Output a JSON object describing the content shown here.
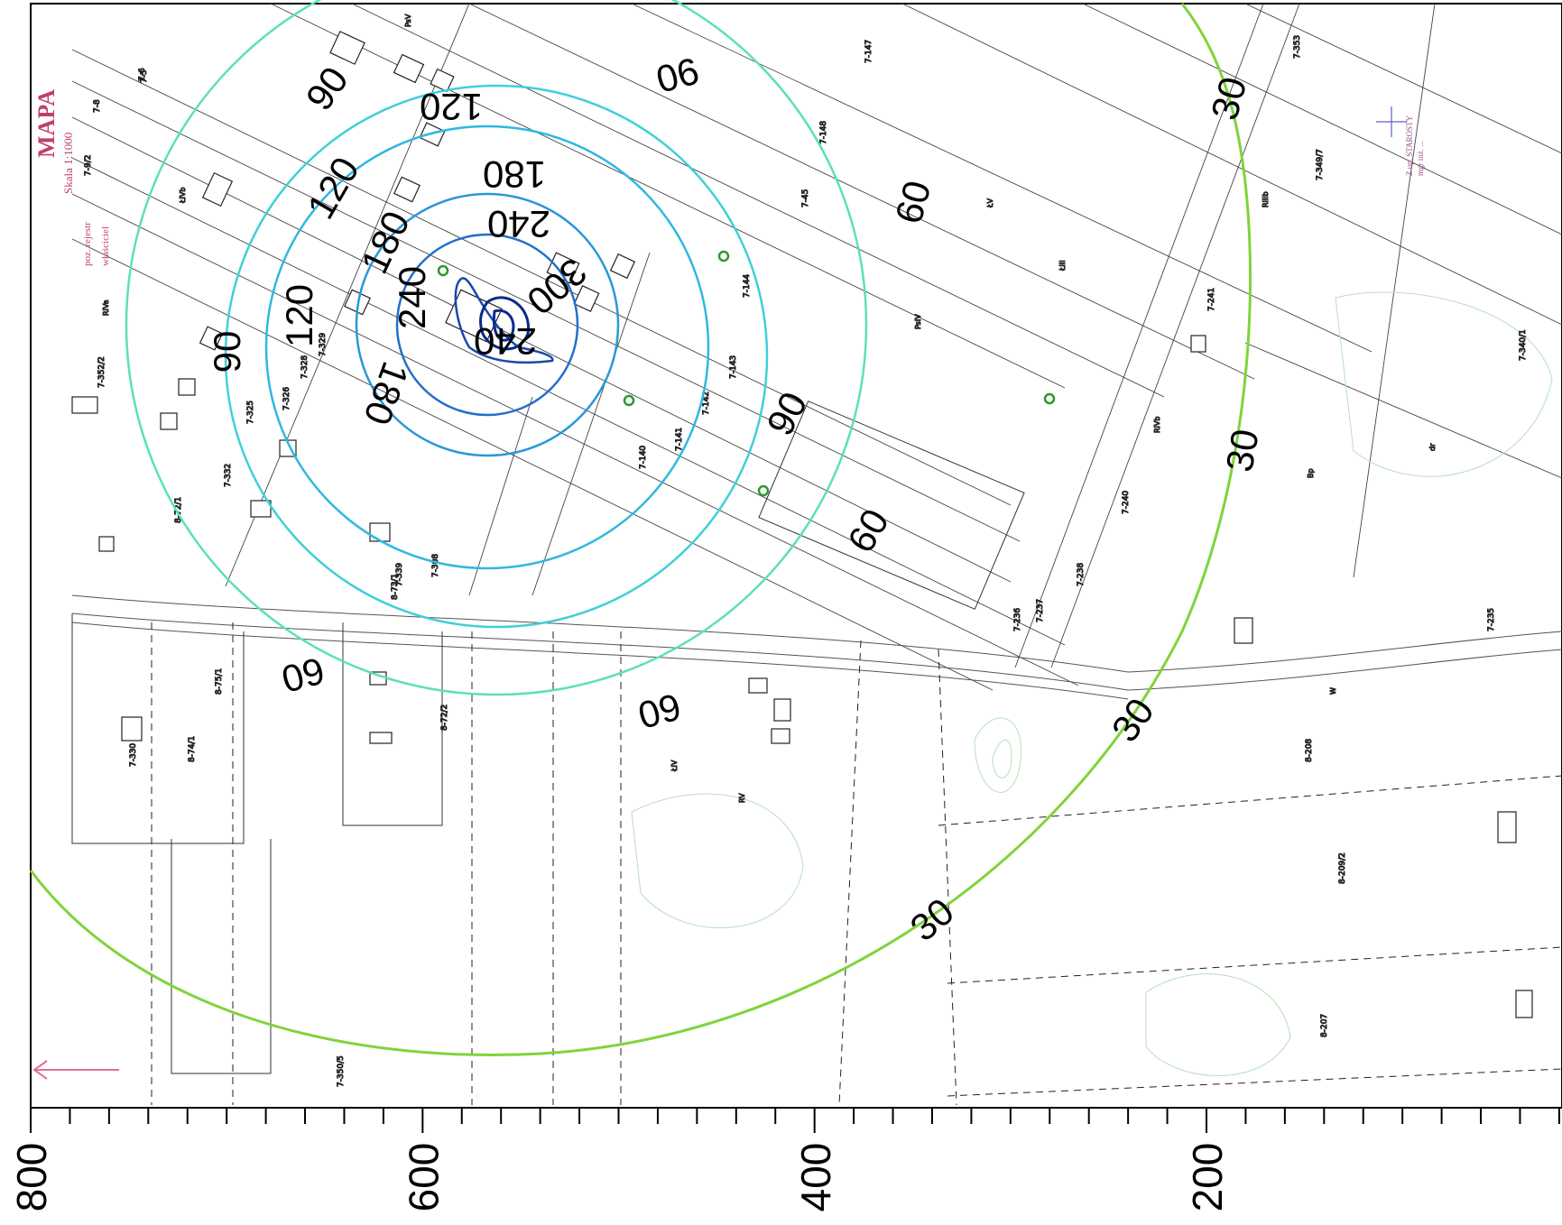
{
  "map": {
    "title": "MAPA",
    "scale_text": "Skala 1:1000",
    "registry_label": "poz. rejestr",
    "owner_label": "właściciel",
    "stamp": {
      "line1": "Z up. STAROSTY",
      "line2": "mgr inż. ..."
    },
    "contour_levels": [
      {
        "value": 30,
        "color": "#7fd43a"
      },
      {
        "value": 60,
        "color": "#5ce0b8"
      },
      {
        "value": 90,
        "color": "#3fd0d8"
      },
      {
        "value": 120,
        "color": "#30b8e0"
      },
      {
        "value": 180,
        "color": "#2a98d8"
      },
      {
        "value": 240,
        "color": "#2270c8"
      },
      {
        "value": 300,
        "color": "#1a48b0"
      }
    ],
    "contour_labels": [
      {
        "text": "90"
      },
      {
        "text": "90"
      },
      {
        "text": "90"
      },
      {
        "text": "90"
      },
      {
        "text": "120"
      },
      {
        "text": "120"
      },
      {
        "text": "120"
      },
      {
        "text": "180"
      },
      {
        "text": "180"
      },
      {
        "text": "180"
      },
      {
        "text": "240"
      },
      {
        "text": "240"
      },
      {
        "text": "240"
      },
      {
        "text": "300"
      },
      {
        "text": "60"
      },
      {
        "text": "60"
      },
      {
        "text": "60"
      },
      {
        "text": "60"
      },
      {
        "text": "30"
      },
      {
        "text": "30"
      },
      {
        "text": "30"
      },
      {
        "text": "30"
      }
    ],
    "axis": {
      "tick_labels": [
        "800",
        "600",
        "400",
        "200"
      ]
    },
    "parcel_labels": [
      "7-6",
      "7-8",
      "7-9/2",
      "7-5",
      "7-147",
      "7-148",
      "7-45",
      "7-144",
      "7-143",
      "7-142",
      "7-141",
      "7-140",
      "7-241",
      "7-240",
      "7-238",
      "7-237",
      "7-236",
      "7-235",
      "8-208",
      "8-209/2",
      "8-207",
      "7-340/1",
      "7-349/7",
      "7-332",
      "7-325",
      "7-326",
      "7-328",
      "7-329",
      "7-330",
      "8-74/1",
      "8-75/1",
      "8-72/1",
      "8-73/1",
      "7-352/2",
      "7-353",
      "7-339",
      "7-308",
      "7-350/5",
      "8-72/2"
    ],
    "land_labels": [
      "ŁIVb",
      "RIVa",
      "PsV",
      "ŁV",
      "RIIIb",
      "PsIV",
      "RIVb",
      "Bp",
      "dr",
      "ŁIV",
      "RV",
      "W",
      "ŁIII"
    ]
  }
}
